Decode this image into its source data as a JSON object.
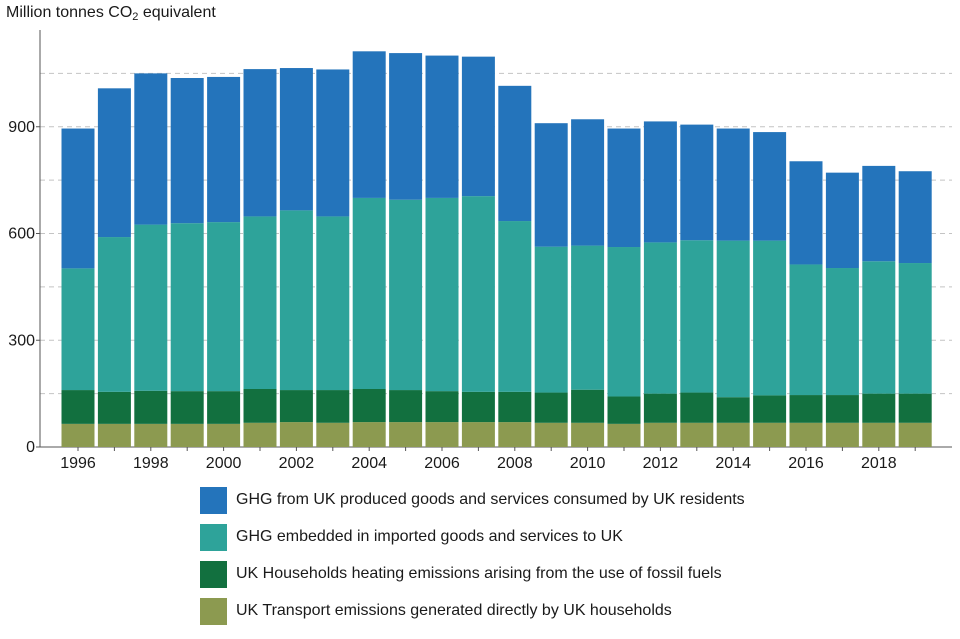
{
  "chart_data": {
    "type": "bar",
    "stacked": true,
    "ylabel_main": "Million tonnes CO",
    "ylabel_sub": "2",
    "ylabel_tail": " equivalent",
    "ylim": [
      0,
      1200
    ],
    "yticks": [
      0,
      300,
      600,
      900
    ],
    "x_tick_labels": [
      "1996",
      "1998",
      "2000",
      "2002",
      "2004",
      "2006",
      "2008",
      "2010",
      "2012",
      "2014",
      "2016",
      "2018"
    ],
    "categories": [
      "1996",
      "1997",
      "1998",
      "1999",
      "2000",
      "2001",
      "2002",
      "2003",
      "2004",
      "2005",
      "2006",
      "2007",
      "2008",
      "2009",
      "2010",
      "2011",
      "2012",
      "2013",
      "2014",
      "2015",
      "2016",
      "2017",
      "2018",
      "2019"
    ],
    "grid": "horizontal-dashed",
    "legend_position": "bottom",
    "series": [
      {
        "name": "UK Transport emissions generated directly by UK households",
        "color": "#8c9a50",
        "values": [
          65,
          65,
          65,
          65,
          65,
          68,
          70,
          68,
          70,
          70,
          70,
          70,
          70,
          68,
          68,
          65,
          68,
          68,
          68,
          68,
          68,
          68,
          68,
          68
        ]
      },
      {
        "name": "UK Households heating emissions arising from the use of fossil fuels",
        "color": "#12703f",
        "values": [
          95,
          90,
          93,
          92,
          92,
          95,
          90,
          92,
          93,
          90,
          87,
          85,
          85,
          85,
          93,
          77,
          82,
          85,
          72,
          77,
          78,
          78,
          82,
          82
        ]
      },
      {
        "name": "GHG embedded in imported goods and services to UK",
        "color": "#2ea39a",
        "values": [
          342,
          435,
          467,
          472,
          475,
          485,
          505,
          488,
          537,
          535,
          543,
          550,
          480,
          410,
          405,
          420,
          425,
          428,
          440,
          435,
          367,
          357,
          372,
          367
        ]
      },
      {
        "name": "GHG from UK produced goods and services consumed by UK residents",
        "color": "#2474bb",
        "values": [
          393,
          418,
          425,
          408,
          408,
          414,
          400,
          413,
          412,
          412,
          400,
          392,
          380,
          347,
          355,
          333,
          340,
          325,
          315,
          305,
          290,
          268,
          268,
          258
        ]
      }
    ]
  }
}
